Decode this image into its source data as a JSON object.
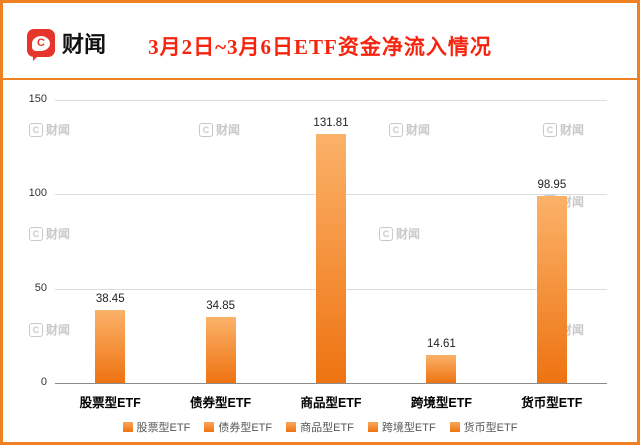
{
  "header": {
    "logo_text": "财闻",
    "logo_icon": "C",
    "title": "3月2日~3月6日ETF资金净流入情况"
  },
  "chart_data": {
    "type": "bar",
    "title": "3月2日~3月6日ETF资金净流入情况",
    "categories": [
      "股票型ETF",
      "债券型ETF",
      "商品型ETF",
      "跨境型ETF",
      "货币型ETF"
    ],
    "values": [
      38.45,
      34.85,
      131.81,
      14.61,
      98.95
    ],
    "value_labels": [
      "38.45",
      "34.85",
      "131.81",
      "14.61",
      "98.95"
    ],
    "xlabel": "",
    "ylabel": "",
    "ylim": [
      0,
      150
    ],
    "yticks": [
      0,
      50,
      100,
      150
    ],
    "grid": true,
    "legend_position": "bottom"
  },
  "legend": {
    "items": [
      "股票型ETF",
      "债券型ETF",
      "商品型ETF",
      "跨境型ETF",
      "货币型ETF"
    ]
  },
  "watermark": {
    "icon": "C",
    "text": "财闻"
  },
  "colors": {
    "accent": "#ef8122",
    "title_red": "#f8230e",
    "logo_red": "#e6352b",
    "bar_top": "#fbb269",
    "bar_bottom": "#ee7311",
    "watermark_gray": "#c9c9c9",
    "grid_gray": "#dcdcdc",
    "axis_gray": "#8c8c8c"
  }
}
